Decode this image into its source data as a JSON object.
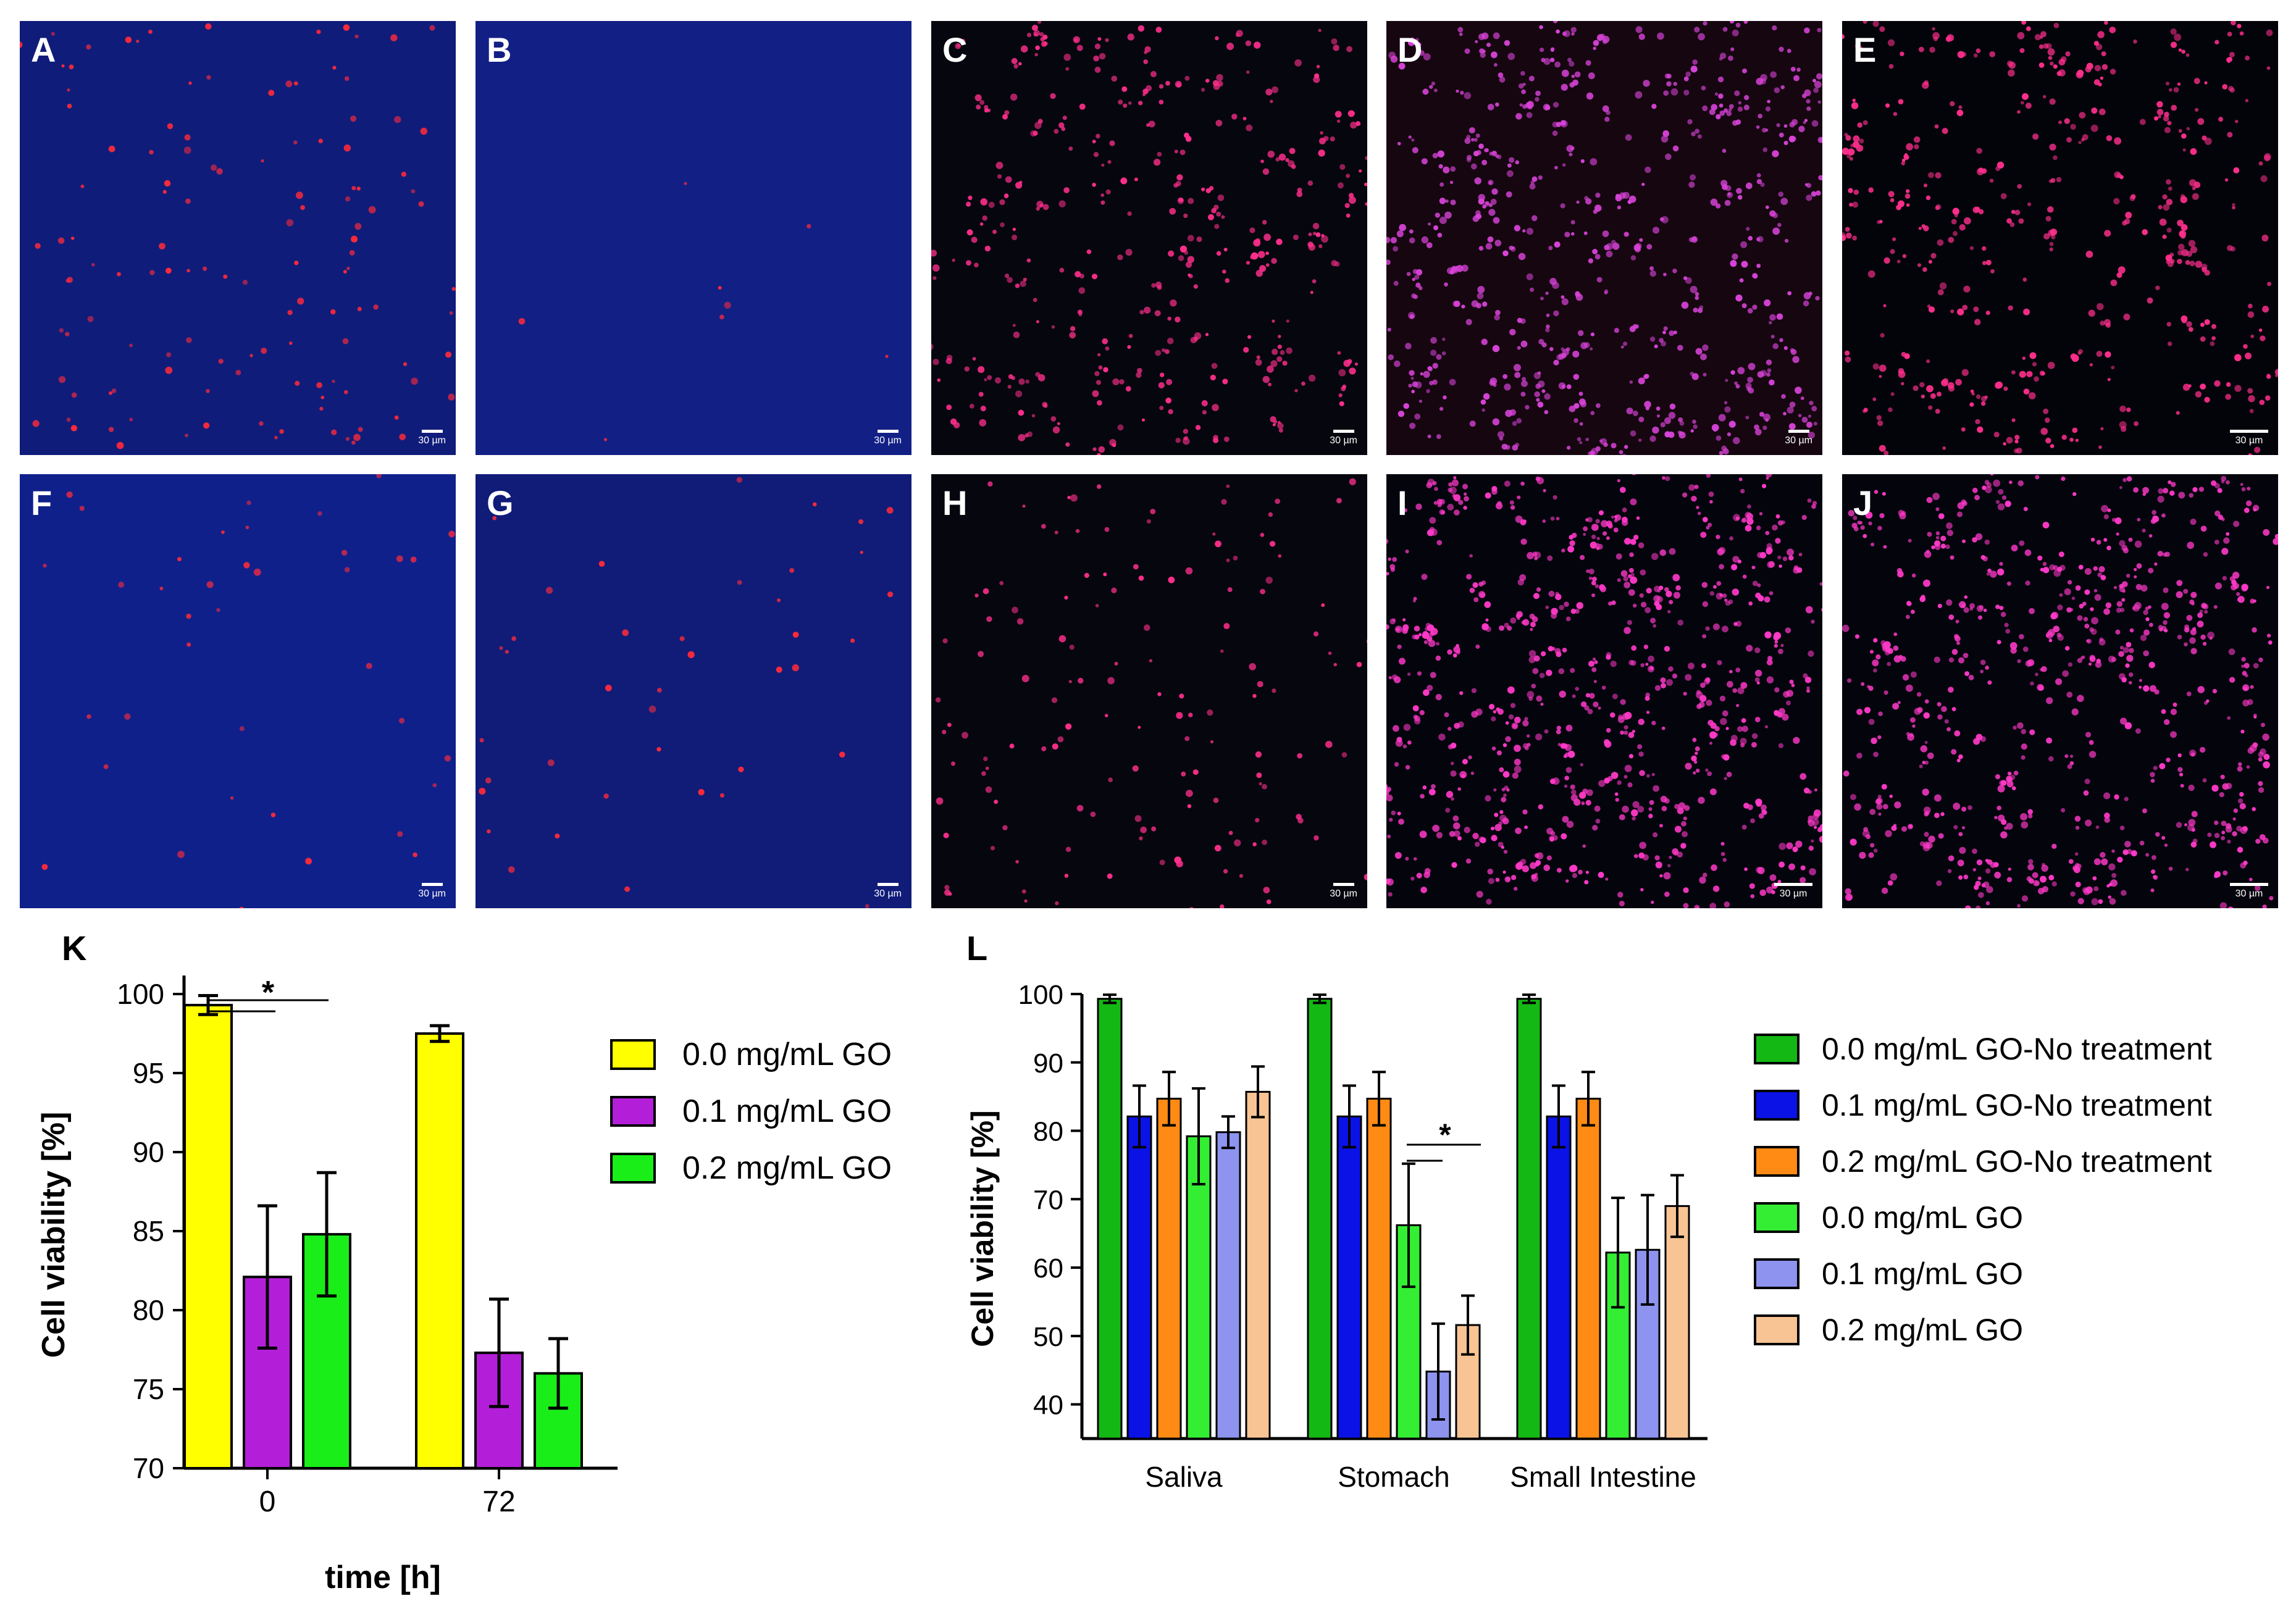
{
  "panels": [
    {
      "label": "A",
      "scale": "30 µm",
      "bg": "#101c7a",
      "dot": "#ff2a3a",
      "density": 0.8
    },
    {
      "label": "B",
      "scale": "30 µm",
      "bg": "#121f85",
      "dot": "#ff2a3a",
      "density": 0.05
    },
    {
      "label": "C",
      "scale": "30 µm",
      "bg": "#06060e",
      "dot": "#ff2f8c",
      "density": 1.3
    },
    {
      "label": "D",
      "scale": "30 µm",
      "bg": "#150610",
      "dot": "#d843d8",
      "density": 2.2
    },
    {
      "label": "E",
      "scale": "30 µm",
      "bg": "#03040a",
      "dot": "#ff2f8c",
      "density": 1.5
    },
    {
      "label": "F",
      "scale": "30 µm",
      "bg": "#10208a",
      "dot": "#ff2a3a",
      "density": 0.25
    },
    {
      "label": "G",
      "scale": "30 µm",
      "bg": "#101c78",
      "dot": "#ff2a3a",
      "density": 0.25
    },
    {
      "label": "H",
      "scale": "30 µm",
      "bg": "#06060e",
      "dot": "#ff2f8c",
      "density": 0.9
    },
    {
      "label": "I",
      "scale": "30 µm",
      "bg": "#03040c",
      "dot": "#ff39c8",
      "density": 2.6
    },
    {
      "label": "J",
      "scale": "30 µm",
      "bg": "#03040c",
      "dot": "#ff39c8",
      "density": 2.4
    }
  ],
  "chart_data": [
    {
      "panel_label": "K",
      "type": "bar",
      "title": "",
      "xlabel": "time [h]",
      "ylabel": "Cell viability [%]",
      "categories": [
        "0",
        "72"
      ],
      "ylim": [
        70,
        100
      ],
      "yticks": [
        70,
        75,
        80,
        85,
        90,
        95,
        100
      ],
      "grid": false,
      "legend": "right",
      "series": [
        {
          "name": "0.0 mg/mL GO",
          "color": "#ffff00",
          "values": [
            99.3,
            97.5
          ],
          "errors": [
            0.6,
            0.5
          ]
        },
        {
          "name": "0.1 mg/mL GO",
          "color": "#b31fd9",
          "values": [
            82.1,
            77.3
          ],
          "errors": [
            4.5,
            3.4
          ]
        },
        {
          "name": "0.2 mg/mL GO",
          "color": "#19ee19",
          "values": [
            84.8,
            null
          ],
          "errors": [
            3.9,
            null
          ]
        },
        {
          "name": "0.2 mg/mL GO",
          "color": "#19ee19",
          "values": [
            null,
            76.0
          ],
          "errors": [
            null,
            2.2
          ]
        }
      ],
      "annotations": [
        {
          "text": "*",
          "category": "0"
        }
      ]
    },
    {
      "panel_label": "L",
      "type": "bar",
      "title": "",
      "xlabel": "",
      "ylabel": "Cell viability [%]",
      "categories": [
        "Saliva",
        "Stomach",
        "Small Intestine"
      ],
      "ylim": [
        35,
        100
      ],
      "yticks": [
        40,
        50,
        60,
        70,
        80,
        90,
        100
      ],
      "grid": false,
      "legend": "right",
      "series": [
        {
          "name": "0.0 mg/mL GO-No treatment",
          "color": "#14b814",
          "values": [
            99.3,
            99.3,
            99.3
          ],
          "errors": [
            0.6,
            0.6,
            0.6
          ]
        },
        {
          "name": "0.1 mg/mL GO-No treatment",
          "color": "#0a12e6",
          "values": [
            82.1,
            82.1,
            82.1
          ],
          "errors": [
            4.5,
            4.5,
            4.5
          ]
        },
        {
          "name": "0.2 mg/mL GO-No treatment",
          "color": "#ff8a14",
          "values": [
            84.7,
            84.7,
            84.7
          ],
          "errors": [
            3.9,
            3.9,
            3.9
          ]
        },
        {
          "name": "0.0 mg/mL GO",
          "color": "#33ee33",
          "values": [
            79.2,
            66.2,
            62.2
          ],
          "errors": [
            7.0,
            9.0,
            8.0
          ]
        },
        {
          "name": "0.1 mg/mL GO",
          "color": "#8d93ee",
          "values": [
            79.8,
            44.8,
            62.6
          ],
          "errors": [
            2.3,
            7.0,
            8.0
          ]
        },
        {
          "name": "0.2 mg/mL GO",
          "color": "#f8c494",
          "values": [
            85.7,
            51.6,
            69.0
          ],
          "errors": [
            3.7,
            4.3,
            4.5
          ]
        }
      ],
      "annotations": [
        {
          "text": "*",
          "category": "Stomach"
        }
      ]
    }
  ]
}
